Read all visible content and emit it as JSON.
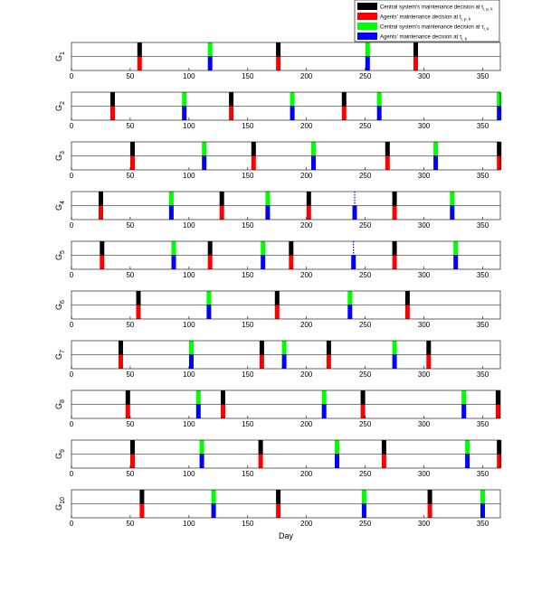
{
  "chart_data": {
    "type": "bar",
    "xlabel": "Day",
    "xlim": [
      0,
      365
    ],
    "xticks": [
      "0",
      "50",
      "100",
      "150",
      "200",
      "250",
      "300",
      "350"
    ],
    "colors": {
      "central_tp": "#000000",
      "agent_tp": "#ff0000",
      "central_tau": "#00ff00",
      "agent_tau": "#0000ff"
    },
    "legend": {
      "placement": "top-right",
      "entries": [
        {
          "key": "central_tp",
          "label": "Central system's maintenance decision at t",
          "sub": "i, p, k"
        },
        {
          "key": "agent_tp",
          "label": "Agents' maintenance decision at t",
          "sub": "i, p, k"
        },
        {
          "key": "central_tau",
          "label": "Central system's maintenance decision at τ",
          "sub": "i, k"
        },
        {
          "key": "agent_tau",
          "label": "Agents' maintenance decision at τ",
          "sub": "i, k"
        }
      ]
    },
    "panels": [
      {
        "label": "G",
        "sub": "1",
        "central_tp": [
          58,
          176,
          293
        ],
        "agent_tp": [
          58,
          176,
          293
        ],
        "central_tau": [
          118,
          252
        ],
        "agent_tau": [
          118,
          252
        ]
      },
      {
        "label": "G",
        "sub": "2",
        "central_tp": [
          35,
          136,
          232
        ],
        "agent_tp": [
          35,
          136,
          232
        ],
        "central_tau": [
          96,
          188,
          262,
          364
        ],
        "agent_tau": [
          96,
          188,
          262,
          364
        ]
      },
      {
        "label": "G",
        "sub": "3",
        "central_tp": [
          52,
          155,
          269,
          364
        ],
        "agent_tp": [
          52,
          155,
          269,
          364
        ],
        "central_tau": [
          113,
          206,
          310
        ],
        "agent_tau": [
          113,
          206,
          310
        ]
      },
      {
        "label": "G",
        "sub": "4",
        "central_tp": [
          25,
          128,
          202,
          275
        ],
        "agent_tp": [
          25,
          128,
          202,
          275
        ],
        "central_tau": [
          85,
          167,
          324
        ],
        "agent_tau": [
          85,
          167,
          241,
          324
        ]
      },
      {
        "label": "G",
        "sub": "5",
        "central_tp": [
          26,
          118,
          187,
          275
        ],
        "agent_tp": [
          26,
          118,
          187,
          275
        ],
        "central_tau": [
          87,
          163,
          327
        ],
        "agent_tau": [
          87,
          163,
          240,
          327
        ]
      },
      {
        "label": "G",
        "sub": "6",
        "central_tp": [
          57,
          175,
          286
        ],
        "agent_tp": [
          57,
          175,
          286
        ],
        "central_tau": [
          117,
          237
        ],
        "agent_tau": [
          117,
          237
        ]
      },
      {
        "label": "G",
        "sub": "7",
        "central_tp": [
          42,
          162,
          219,
          304
        ],
        "agent_tp": [
          42,
          162,
          219,
          304
        ],
        "central_tau": [
          102,
          181,
          275
        ],
        "agent_tau": [
          102,
          181,
          275
        ]
      },
      {
        "label": "G",
        "sub": "8",
        "central_tp": [
          48,
          129,
          248,
          363
        ],
        "agent_tp": [
          48,
          129,
          248,
          363
        ],
        "central_tau": [
          108,
          215,
          334
        ],
        "agent_tau": [
          108,
          215,
          334
        ]
      },
      {
        "label": "G",
        "sub": "9",
        "central_tp": [
          52,
          161,
          266,
          364
        ],
        "agent_tp": [
          52,
          161,
          266,
          364
        ],
        "central_tau": [
          111,
          226,
          337
        ],
        "agent_tau": [
          111,
          226,
          337
        ]
      },
      {
        "label": "G",
        "sub": "10",
        "central_tp": [
          60,
          176,
          305
        ],
        "agent_tp": [
          60,
          176,
          305
        ],
        "central_tau": [
          121,
          249,
          350
        ],
        "agent_tau": [
          121,
          249,
          350
        ]
      }
    ]
  }
}
